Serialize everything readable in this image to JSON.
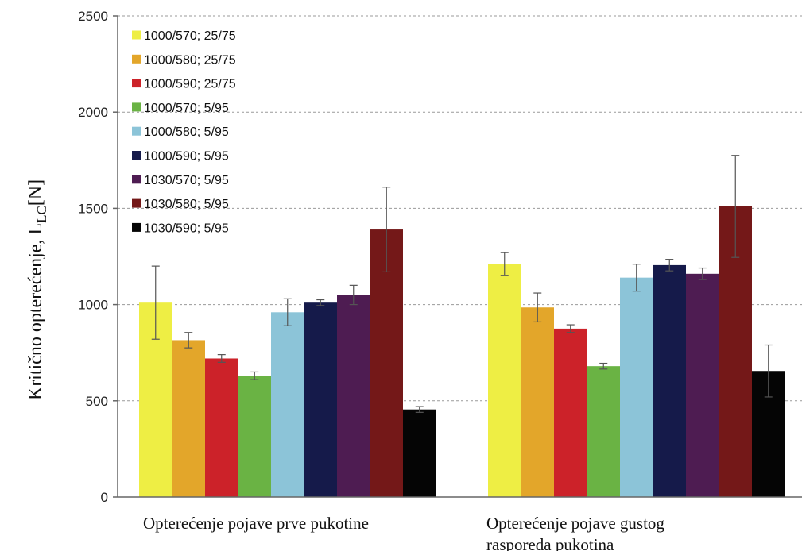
{
  "chart_data": {
    "type": "bar",
    "ylabel_main": "Kritično opterećenje, L",
    "ylabel_sub": "LC",
    "ylabel_unit": "[N]",
    "ylim": [
      0,
      2500
    ],
    "yticks": [
      0,
      500,
      1000,
      1500,
      2000,
      2500
    ],
    "grid": true,
    "legend_position": "top-left",
    "category_lines": [
      [
        "Opterećenje pojave prve pukotine"
      ],
      [
        "Opterećenje pojave gustog",
        "rasporeda pukotina"
      ]
    ],
    "series": [
      {
        "name": "1000/570; 25/75",
        "color": "#eeee44",
        "values": [
          1010,
          1210
        ],
        "errors": [
          190,
          60
        ]
      },
      {
        "name": "1000/580; 25/75",
        "color": "#e3a62a",
        "values": [
          815,
          985
        ],
        "errors": [
          40,
          75
        ]
      },
      {
        "name": "1000/590; 25/75",
        "color": "#cc2229",
        "values": [
          720,
          875
        ],
        "errors": [
          20,
          20
        ]
      },
      {
        "name": "1000/570; 5/95",
        "color": "#6ab344",
        "values": [
          630,
          680
        ],
        "errors": [
          20,
          15
        ]
      },
      {
        "name": "1000/580; 5/95",
        "color": "#8cc4d8",
        "values": [
          960,
          1140
        ],
        "errors": [
          70,
          70
        ]
      },
      {
        "name": "1000/590; 5/95",
        "color": "#151a4a",
        "values": [
          1010,
          1205
        ],
        "errors": [
          15,
          30
        ]
      },
      {
        "name": "1030/570; 5/95",
        "color": "#4e1c52",
        "values": [
          1050,
          1160
        ],
        "errors": [
          50,
          30
        ]
      },
      {
        "name": "1030/580; 5/95",
        "color": "#741818",
        "values": [
          1390,
          1510
        ],
        "errors": [
          220,
          265
        ]
      },
      {
        "name": "1030/590; 5/95",
        "color": "#050505",
        "values": [
          455,
          655
        ],
        "errors": [
          15,
          135
        ]
      }
    ]
  }
}
